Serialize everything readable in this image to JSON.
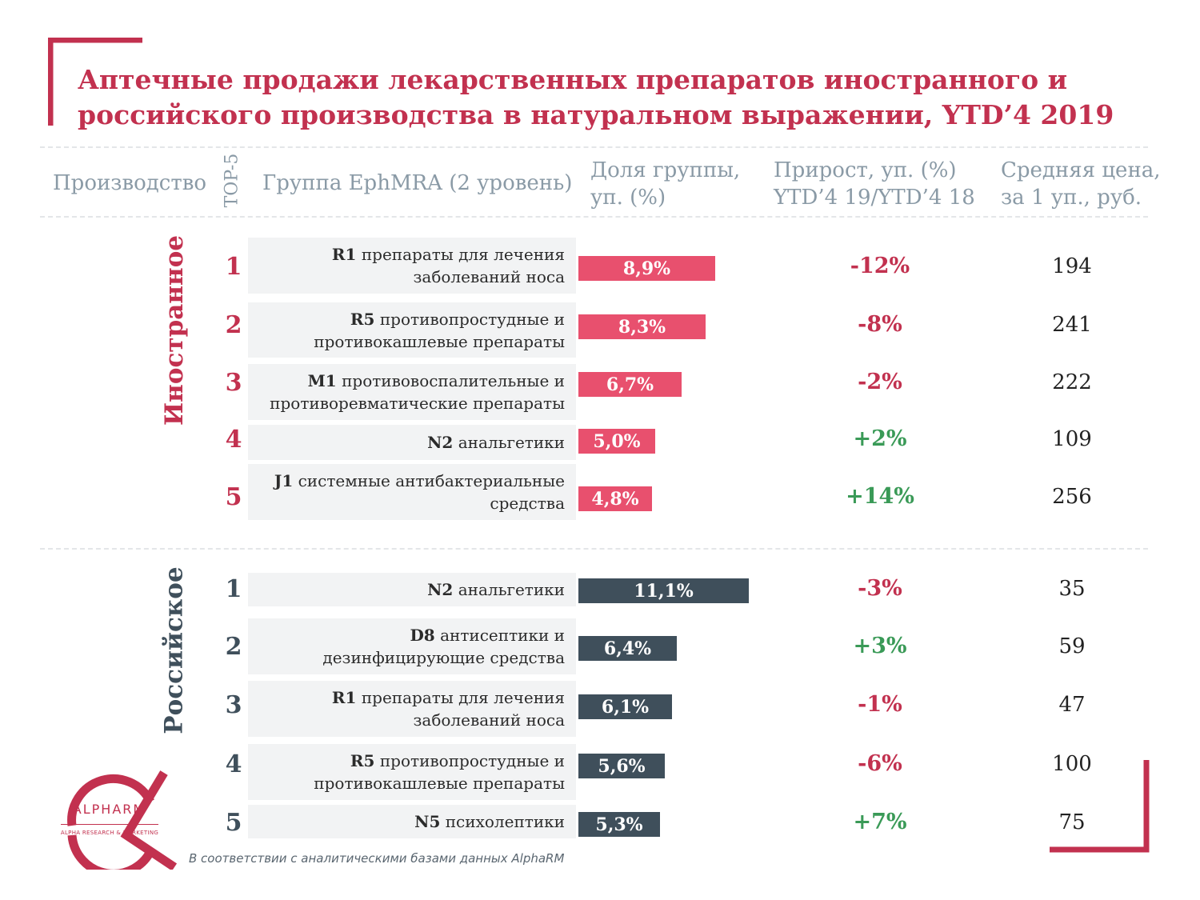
{
  "title": "Аптечные продажи лекарственных препаратов иностранного и российского производства в натуральном выражении, YTD’4 2019",
  "headers": {
    "production": "Производство",
    "top5": "TOP-5",
    "group": "Группа EphMRA (2 уровень)",
    "share": "Доля группы, уп. (%)",
    "growth": "Прирост, уп. (%) YTD’4 19/YTD’4 18",
    "price": "Средняя цена, за 1 уп., руб."
  },
  "colors": {
    "accent": "#c2314f",
    "foreign_bar": "#e8506e",
    "russian_bar": "#3f4f5b",
    "positive": "#3a9a57",
    "negative": "#c2314f",
    "header_text": "#8a9aa6"
  },
  "chart_data": {
    "type": "bar",
    "unit": "%",
    "sections": [
      {
        "label": "Иностранное",
        "rows": [
          {
            "rank": "1",
            "code": "R1",
            "name": "препараты для лечения заболеваний носа",
            "share": 8.9,
            "share_label": "8,9%",
            "growth": -12,
            "growth_label": "-12%",
            "price": "194"
          },
          {
            "rank": "2",
            "code": "R5",
            "name": "противопростудные и противокашлевые препараты",
            "share": 8.3,
            "share_label": "8,3%",
            "growth": -8,
            "growth_label": "-8%",
            "price": "241"
          },
          {
            "rank": "3",
            "code": "M1",
            "name": "противовоспалительные и противоревматические препараты",
            "share": 6.7,
            "share_label": "6,7%",
            "growth": -2,
            "growth_label": "-2%",
            "price": "222"
          },
          {
            "rank": "4",
            "code": "N2",
            "name": "анальгетики",
            "share": 5.0,
            "share_label": "5,0%",
            "growth": 2,
            "growth_label": "+2%",
            "price": "109"
          },
          {
            "rank": "5",
            "code": "J1",
            "name": "системные антибактериальные средства",
            "share": 4.8,
            "share_label": "4,8%",
            "growth": 14,
            "growth_label": "+14%",
            "price": "256"
          }
        ]
      },
      {
        "label": "Российское",
        "rows": [
          {
            "rank": "1",
            "code": "N2",
            "name": "анальгетики",
            "share": 11.1,
            "share_label": "11,1%",
            "growth": -3,
            "growth_label": "-3%",
            "price": "35"
          },
          {
            "rank": "2",
            "code": "D8",
            "name": "антисептики и дезинфицирующие средства",
            "share": 6.4,
            "share_label": "6,4%",
            "growth": 3,
            "growth_label": "+3%",
            "price": "59"
          },
          {
            "rank": "3",
            "code": "R1",
            "name": "препараты для лечения заболеваний носа",
            "share": 6.1,
            "share_label": "6,1%",
            "growth": -1,
            "growth_label": "-1%",
            "price": "47"
          },
          {
            "rank": "4",
            "code": "R5",
            "name": "противопростудные и противокашлевые препараты",
            "share": 5.6,
            "share_label": "5,6%",
            "growth": -6,
            "growth_label": "-6%",
            "price": "100"
          },
          {
            "rank": "5",
            "code": "N5",
            "name": "психолептики",
            "share": 5.3,
            "share_label": "5,3%",
            "growth": 7,
            "growth_label": "+7%",
            "price": "75"
          }
        ]
      }
    ]
  },
  "logo": {
    "name": "ALPHARM",
    "tagline": "ALPHA RESEARCH & MARKETING"
  },
  "footnote": "В соответствии с аналитическими базами данных AlphaRM"
}
